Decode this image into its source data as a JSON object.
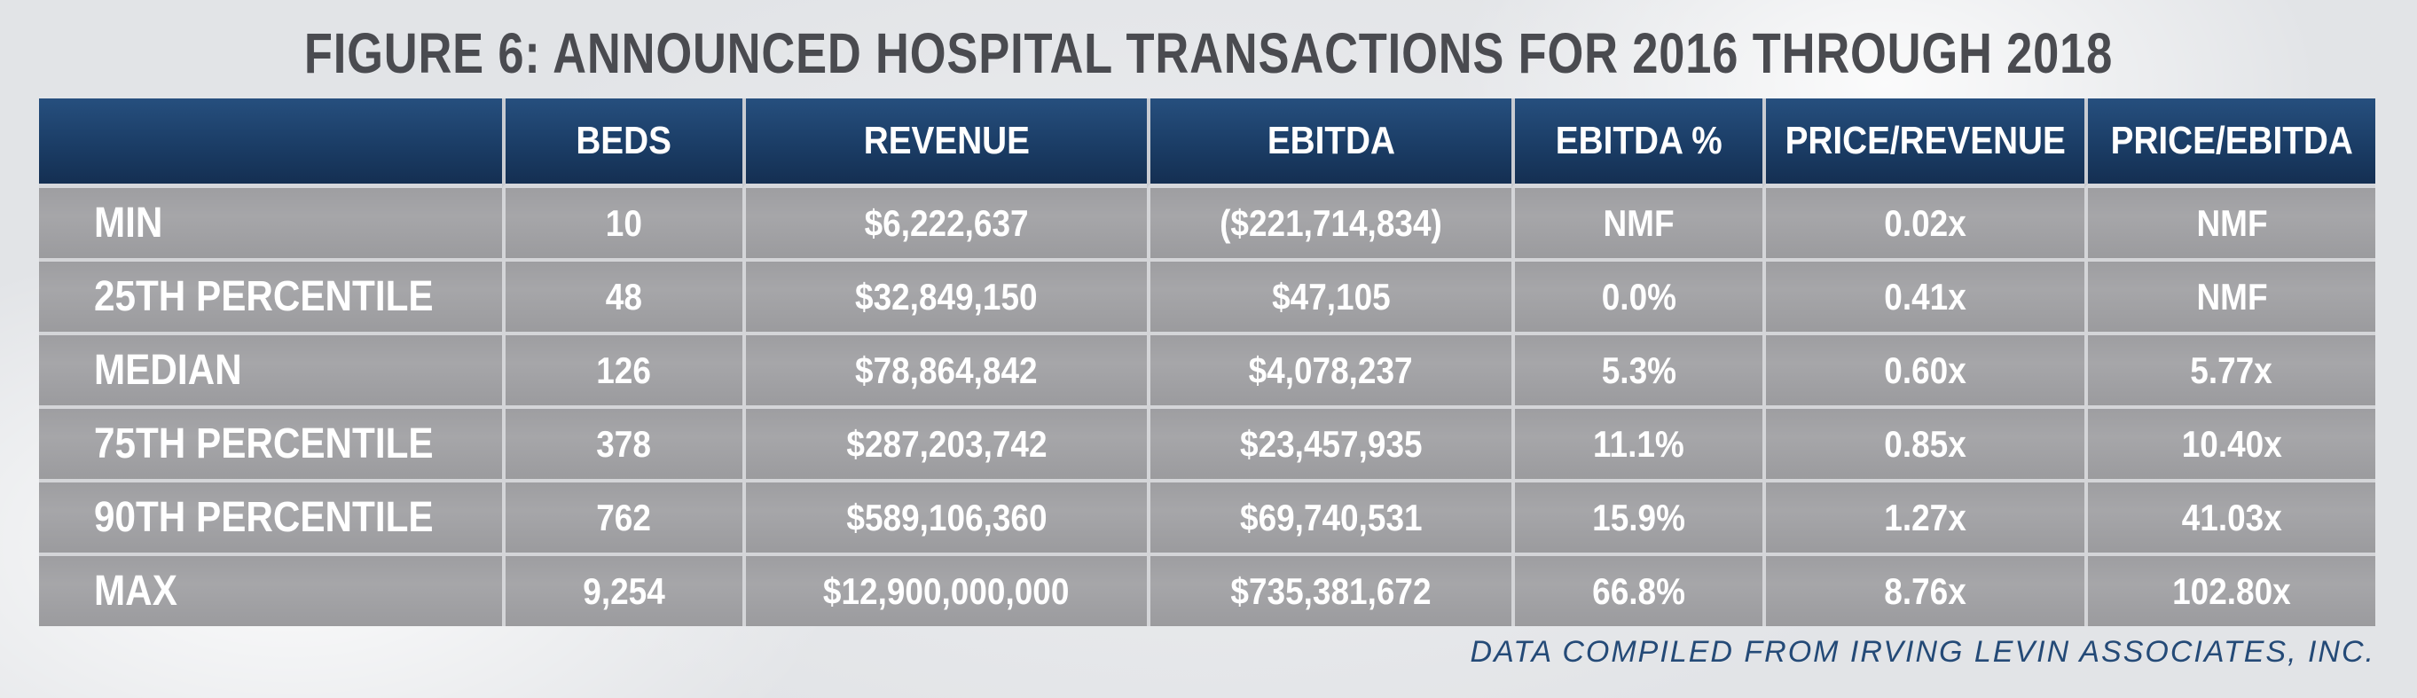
{
  "title": "FIGURE 6: ANNOUNCED HOSPITAL TRANSACTIONS FOR 2016 THROUGH 2018",
  "source": "DATA COMPILED FROM IRVING LEVIN ASSOCIATES, INC.",
  "colors": {
    "header_bg": "#1b3d66",
    "row_bg": "#a3a3a6",
    "title_text": "#4a4b50",
    "source_text": "#244a77"
  },
  "chart_data": {
    "type": "table",
    "title": "FIGURE 6: ANNOUNCED HOSPITAL TRANSACTIONS FOR 2016 THROUGH 2018",
    "columns": [
      "",
      "BEDS",
      "REVENUE",
      "EBITDA",
      "EBITDA %",
      "PRICE/REVENUE",
      "PRICE/EBITDA"
    ],
    "rows": [
      [
        "MIN",
        "10",
        "$6,222,637",
        "($221,714,834)",
        "NMF",
        "0.02x",
        "NMF"
      ],
      [
        "25TH PERCENTILE",
        "48",
        "$32,849,150",
        "$47,105",
        "0.0%",
        "0.41x",
        "NMF"
      ],
      [
        "MEDIAN",
        "126",
        "$78,864,842",
        "$4,078,237",
        "5.3%",
        "0.60x",
        "5.77x"
      ],
      [
        "75TH PERCENTILE",
        "378",
        "$287,203,742",
        "$23,457,935",
        "11.1%",
        "0.85x",
        "10.40x"
      ],
      [
        "90TH PERCENTILE",
        "762",
        "$589,106,360",
        "$69,740,531",
        "15.9%",
        "1.27x",
        "41.03x"
      ],
      [
        "MAX",
        "9,254",
        "$12,900,000,000",
        "$735,381,672",
        "66.8%",
        "8.76x",
        "102.80x"
      ]
    ],
    "source": "DATA COMPILED FROM IRVING LEVIN ASSOCIATES, INC."
  }
}
